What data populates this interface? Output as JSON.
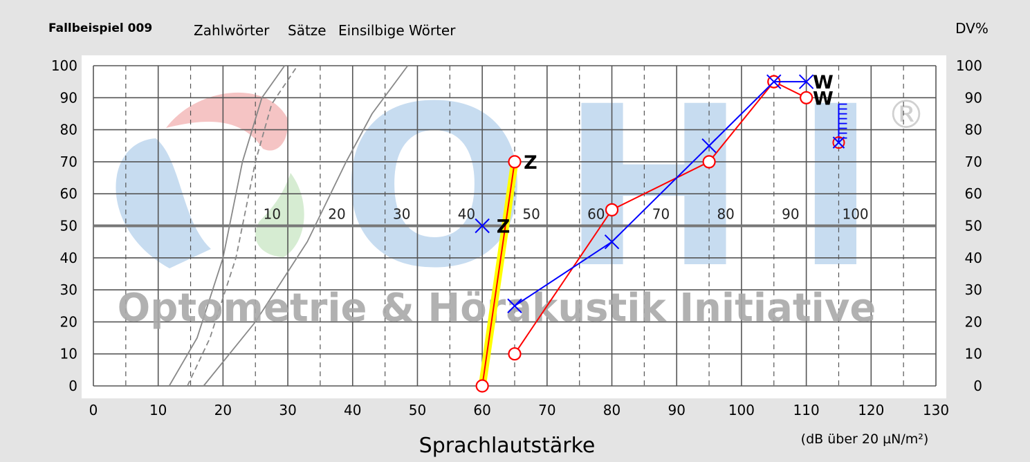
{
  "case_label": "Fallbeispiel 009",
  "header_labels": [
    "Zahlwörter",
    "Sätze",
    "Einsilbige Wörter"
  ],
  "right_axis_title": "DV%",
  "watermark": {
    "text": "Optometrie & Hörakustik Initiative",
    "letters": [
      "O",
      "H",
      "I"
    ],
    "registered": "®",
    "colors": {
      "blue": "#c7dcf0",
      "red": "#f5c4c4",
      "green": "#d6ecd2",
      "text": "#a8a8a8"
    }
  },
  "chart_data": {
    "type": "line",
    "xlabel": "Sprachlautstärke",
    "xunit": "(dB über 20 µN/m²)",
    "xlim": [
      0,
      130
    ],
    "x_ticks": [
      0,
      10,
      20,
      30,
      40,
      50,
      60,
      70,
      80,
      90,
      100,
      110,
      120,
      130
    ],
    "ylim": [
      0,
      100
    ],
    "y_ticks": [
      0,
      10,
      20,
      30,
      40,
      50,
      60,
      70,
      80,
      90,
      100
    ],
    "y2_ticks": [
      100,
      90,
      80,
      70,
      60,
      50,
      40,
      30,
      20,
      10,
      0
    ],
    "grid": true,
    "mid_axis_labels": [
      {
        "x": 28,
        "label": "10"
      },
      {
        "x": 38,
        "label": "20"
      },
      {
        "x": 48,
        "label": "30"
      },
      {
        "x": 58,
        "label": "40"
      },
      {
        "x": 68,
        "label": "50"
      },
      {
        "x": 78,
        "label": "60"
      },
      {
        "x": 88,
        "label": "70"
      },
      {
        "x": 98,
        "label": "80"
      },
      {
        "x": 108,
        "label": "90"
      },
      {
        "x": 118,
        "label": "100"
      }
    ],
    "reference_curves": [
      {
        "style": "solid",
        "points": [
          [
            11.7,
            0
          ],
          [
            16,
            15
          ],
          [
            20,
            40
          ],
          [
            23,
            70
          ],
          [
            26,
            90
          ],
          [
            29.5,
            100
          ]
        ]
      },
      {
        "style": "dashed",
        "points": [
          [
            14.5,
            0
          ],
          [
            18,
            15
          ],
          [
            22,
            40
          ],
          [
            25,
            70
          ],
          [
            27.5,
            88
          ],
          [
            31.5,
            100
          ]
        ]
      },
      {
        "style": "solid",
        "points": [
          [
            17,
            0
          ],
          [
            25,
            20
          ],
          [
            33,
            45
          ],
          [
            39,
            70
          ],
          [
            43,
            85
          ],
          [
            48.5,
            100
          ]
        ]
      }
    ],
    "series": [
      {
        "color": "#ff0000",
        "marker": "circle",
        "highlight": "#ffff00",
        "points": [
          [
            60,
            0
          ],
          [
            65,
            70
          ]
        ]
      },
      {
        "color": "#ff0000",
        "marker": "circle",
        "points": [
          [
            65,
            10
          ],
          [
            80,
            55
          ],
          [
            95,
            70
          ],
          [
            105,
            95
          ],
          [
            110,
            90
          ]
        ]
      },
      {
        "color": "#0000ff",
        "marker": "cross",
        "points": [
          [
            65,
            25
          ],
          [
            80,
            45
          ],
          [
            95,
            75
          ],
          [
            105,
            95
          ],
          [
            110,
            95
          ]
        ]
      },
      {
        "color": "#0000ff",
        "marker": "cross",
        "points": [
          [
            60,
            50
          ]
        ]
      }
    ],
    "discomfort_marker": {
      "x": 115,
      "y_top": 88,
      "y_bottom": 76
    },
    "annotations": [
      {
        "text": "Z",
        "x": 66.4,
        "y": 70,
        "color": "#000000"
      },
      {
        "text": "Z",
        "x": 62.2,
        "y": 50,
        "color": "#000000"
      },
      {
        "text": "W",
        "x": 111,
        "y": 95,
        "color": "#000000"
      },
      {
        "text": "W",
        "x": 111,
        "y": 90,
        "color": "#000000"
      }
    ]
  }
}
